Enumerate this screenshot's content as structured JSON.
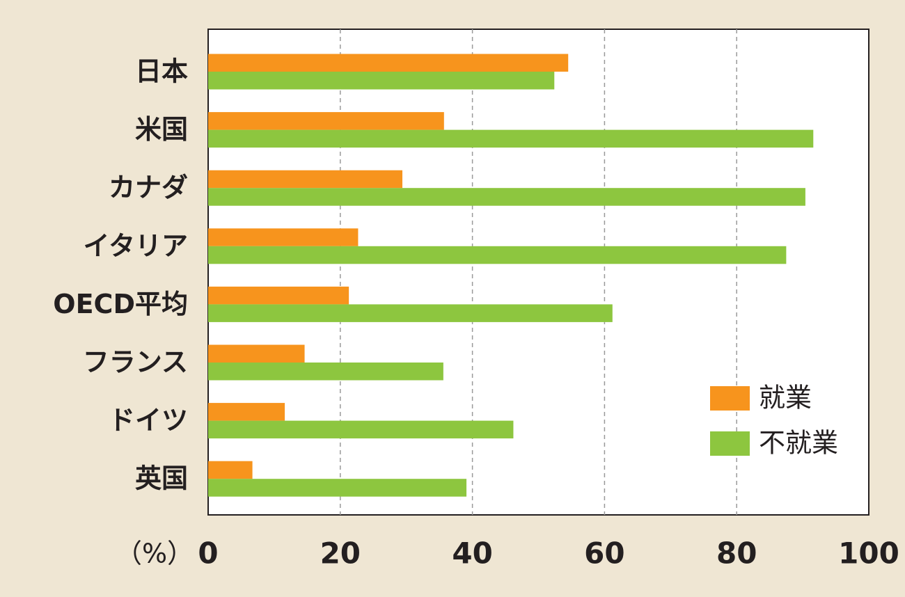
{
  "chart_data": {
    "type": "hbar",
    "xlabel": "（%）",
    "categories": [
      "日本",
      "米国",
      "カナダ",
      "イタリア",
      "OECD平均",
      "フランス",
      "ドイツ",
      "英国"
    ],
    "series": [
      {
        "name": "就業",
        "color": "#f7941d",
        "values": [
          54.5,
          35.7,
          29.4,
          22.7,
          21.3,
          14.6,
          11.6,
          6.7
        ]
      },
      {
        "name": "不就業",
        "color": "#8dc63f",
        "values": [
          52.4,
          91.6,
          90.4,
          87.5,
          61.2,
          35.6,
          46.2,
          39.1
        ]
      }
    ],
    "xlim": [
      0,
      100
    ],
    "xticks": [
      0,
      20,
      40,
      60,
      80,
      100
    ],
    "grid": true,
    "legend": "lower right"
  }
}
